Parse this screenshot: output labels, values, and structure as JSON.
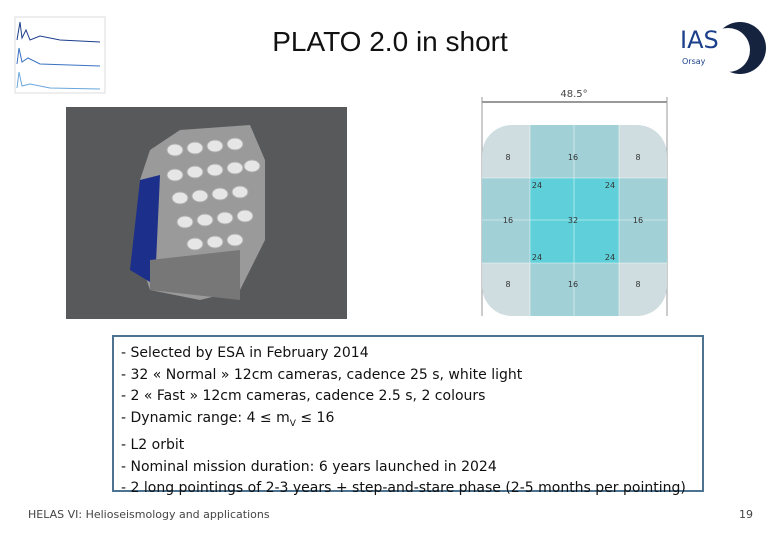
{
  "header": {
    "title": "PLATO 2.0 in short",
    "logo": {
      "name": "IAS",
      "place": "Orsay"
    }
  },
  "fov_diagram": {
    "angle": "48.5°",
    "cells": [
      8,
      16,
      8,
      24,
      24,
      16,
      32,
      16,
      24,
      24,
      8,
      16,
      8
    ]
  },
  "bullets": [
    "- Selected by ESA in February 2014",
    "- 32 « Normal » 12cm cameras, cadence 25 s, white light",
    "- 2 « Fast » 12cm cameras, cadence 2.5 s, 2 colours",
    {
      "text": "- Dynamic range: 4 ≤ m",
      "subscript": "V",
      "after": " ≤ 16"
    },
    "- L2 orbit",
    "- Nominal mission duration: 6 years launched in 2024",
    "- 2 long pointings of 2-3 years + step-and-stare phase (2-5 months per pointing)"
  ],
  "footer": {
    "text": "HELAS VI: Helioseismology and applications",
    "page": 19
  }
}
